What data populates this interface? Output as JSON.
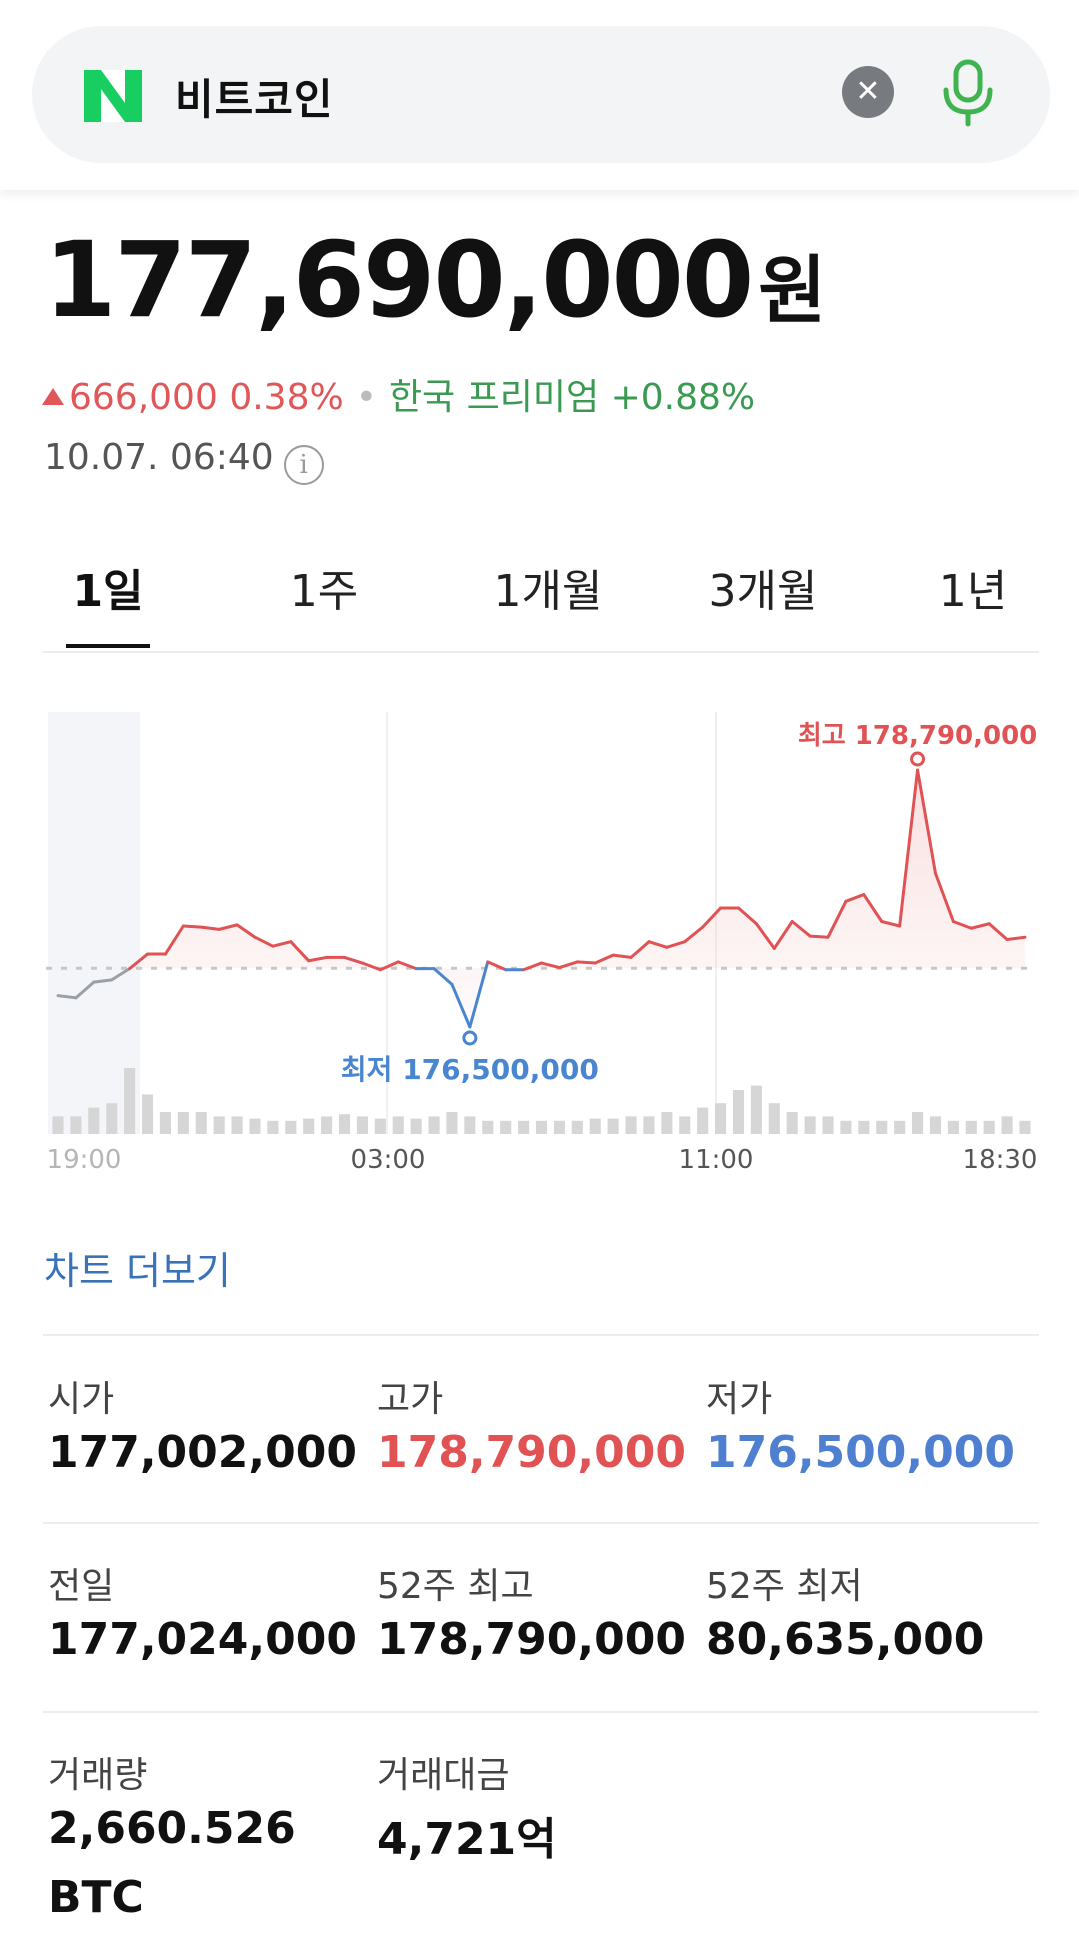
{
  "search": {
    "query": "비트코인"
  },
  "quote": {
    "price": "177,690,000",
    "unit": "원",
    "change_amount": "666,000",
    "change_pct": "0.38%",
    "premium_label": "한국 프리미엄",
    "premium_value": "+0.88%",
    "timestamp": "10.07. 06:40"
  },
  "tabs": [
    {
      "label": "1일",
      "active": true
    },
    {
      "label": "1주",
      "active": false
    },
    {
      "label": "1개월",
      "active": false
    },
    {
      "label": "3개월",
      "active": false
    },
    {
      "label": "1년",
      "active": false
    }
  ],
  "chart_data": {
    "type": "line",
    "x_ticks": [
      "19:00",
      "03:00",
      "11:00",
      "18:30"
    ],
    "baseline": 177024000,
    "high_label": "최고 178,790,000",
    "low_label": "최저 176,500,000",
    "high": 178790000,
    "low": 176500000,
    "values": [
      176780000,
      176760000,
      176900000,
      176920000,
      177020000,
      177150000,
      177150000,
      177400000,
      177390000,
      177370000,
      177410000,
      177300000,
      177220000,
      177260000,
      177090000,
      177120000,
      177120000,
      177070000,
      177010000,
      177080000,
      177020000,
      177020000,
      176880000,
      176500000,
      177080000,
      177010000,
      177010000,
      177070000,
      177030000,
      177080000,
      177070000,
      177140000,
      177120000,
      177260000,
      177210000,
      177260000,
      177390000,
      177560000,
      177560000,
      177420000,
      177200000,
      177440000,
      177310000,
      177300000,
      177620000,
      177680000,
      177440000,
      177400000,
      178790000,
      177870000,
      177440000,
      177380000,
      177420000,
      177280000,
      177300000
    ],
    "volume": [
      8,
      8,
      12,
      14,
      30,
      18,
      10,
      10,
      10,
      8,
      8,
      7,
      6,
      6,
      7,
      8,
      9,
      8,
      7,
      8,
      7,
      8,
      10,
      8,
      6,
      6,
      6,
      6,
      6,
      6,
      7,
      7,
      8,
      8,
      10,
      8,
      12,
      14,
      20,
      22,
      14,
      10,
      8,
      8,
      6,
      6,
      6,
      6,
      10,
      8,
      6,
      6,
      6,
      8,
      6
    ],
    "colors": {
      "up": "#e05253",
      "down": "#4a86cf",
      "pre": "#9aa0aa",
      "baseline": "#c7c7c7"
    }
  },
  "more_link": "차트 더보기",
  "stats": [
    {
      "label": "시가",
      "value": "177,002,000",
      "color": ""
    },
    {
      "label": "고가",
      "value": "178,790,000",
      "color": "red"
    },
    {
      "label": "저가",
      "value": "176,500,000",
      "color": "blue"
    },
    {
      "label": "전일",
      "value": "177,024,000",
      "color": ""
    },
    {
      "label": "52주 최고",
      "value": "178,790,000",
      "color": ""
    },
    {
      "label": "52주 최저",
      "value": "80,635,000",
      "color": ""
    },
    {
      "label": "거래량",
      "value": "2,660.526",
      "value2": "BTC",
      "color": ""
    },
    {
      "label": "거래대금",
      "value": "4,721억",
      "color": ""
    }
  ]
}
